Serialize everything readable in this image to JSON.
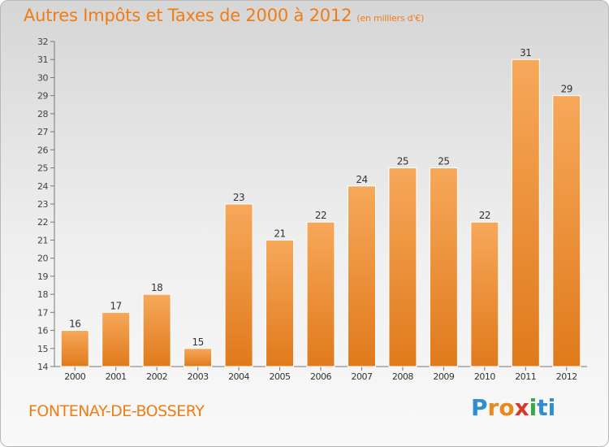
{
  "header": {
    "title": "Autres Impôts et Taxes de 2000 à 2012",
    "unit": "(en milliers d'€)"
  },
  "footer": {
    "town": "FONTENAY-DE-BOSSERY",
    "logo": "Proxiti"
  },
  "colors": {
    "accent": "#ef7d16",
    "bar_top": "#f7a85a",
    "bar_bottom": "#e07a1c"
  },
  "chart_data": {
    "type": "bar",
    "categories": [
      "2000",
      "2001",
      "2002",
      "2003",
      "2004",
      "2005",
      "2006",
      "2007",
      "2008",
      "2009",
      "2010",
      "2011",
      "2012"
    ],
    "values": [
      16,
      17,
      18,
      15,
      23,
      21,
      22,
      24,
      25,
      25,
      22,
      31,
      29
    ],
    "ylim": [
      14,
      32
    ],
    "yticks": [
      14,
      15,
      16,
      17,
      18,
      19,
      20,
      21,
      22,
      23,
      24,
      25,
      26,
      27,
      28,
      29,
      30,
      31,
      32
    ],
    "grid": false,
    "data_labels": true
  }
}
